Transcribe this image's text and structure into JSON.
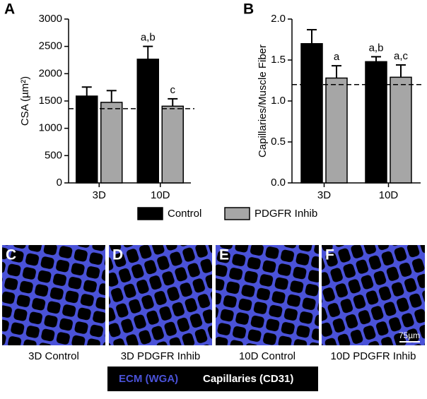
{
  "chart_data": [
    {
      "type": "bar",
      "panel": "A",
      "ylabel": "CSA (µm²)",
      "categories": [
        "3D",
        "10D"
      ],
      "series": [
        {
          "name": "Control",
          "color": "#000000",
          "values": [
            1590,
            2265
          ],
          "errors": [
            165,
            235
          ],
          "annotations": [
            null,
            "a,b"
          ]
        },
        {
          "name": "PDGFR Inhib",
          "color": "#a6a6a6",
          "values": [
            1475,
            1405
          ],
          "errors": [
            215,
            135
          ],
          "annotations": [
            null,
            "c"
          ]
        }
      ],
      "reference_line": 1360,
      "ylim": [
        0,
        3000
      ],
      "yticks": [
        0,
        500,
        1000,
        1500,
        2000,
        2500,
        3000
      ]
    },
    {
      "type": "bar",
      "panel": "B",
      "ylabel": "Capillaries/Muscle Fiber",
      "categories": [
        "3D",
        "10D"
      ],
      "series": [
        {
          "color": "#000000",
          "values": [
            1.7,
            1.48
          ],
          "errors": [
            0.17,
            0.06
          ],
          "annotations": [
            null,
            "a,b"
          ]
        },
        {
          "color": "#a6a6a6",
          "values": [
            1.28,
            1.29
          ],
          "errors": [
            0.15,
            0.15
          ],
          "annotations": [
            "a",
            "a,c"
          ]
        }
      ],
      "reference_line": 1.2,
      "ylim": [
        0,
        2.0
      ],
      "yticks": [
        {
          "value": 0,
          "label": "0.0"
        },
        0.5,
        {
          "value": 1,
          "label": "1.0"
        },
        1.5,
        {
          "value": 2,
          "label": "2.0"
        }
      ]
    }
  ],
  "images": [
    {
      "letter": "C",
      "caption": "3D Control"
    },
    {
      "letter": "D",
      "caption": "3D PDGFR Inhib"
    },
    {
      "letter": "E",
      "caption": "10D Control"
    },
    {
      "letter": "F",
      "caption": "10D PDGFR Inhib"
    }
  ],
  "scale_bar": "75µm",
  "stain_legend": [
    "ECM (WGA)",
    "Capillaries (CD31)"
  ]
}
